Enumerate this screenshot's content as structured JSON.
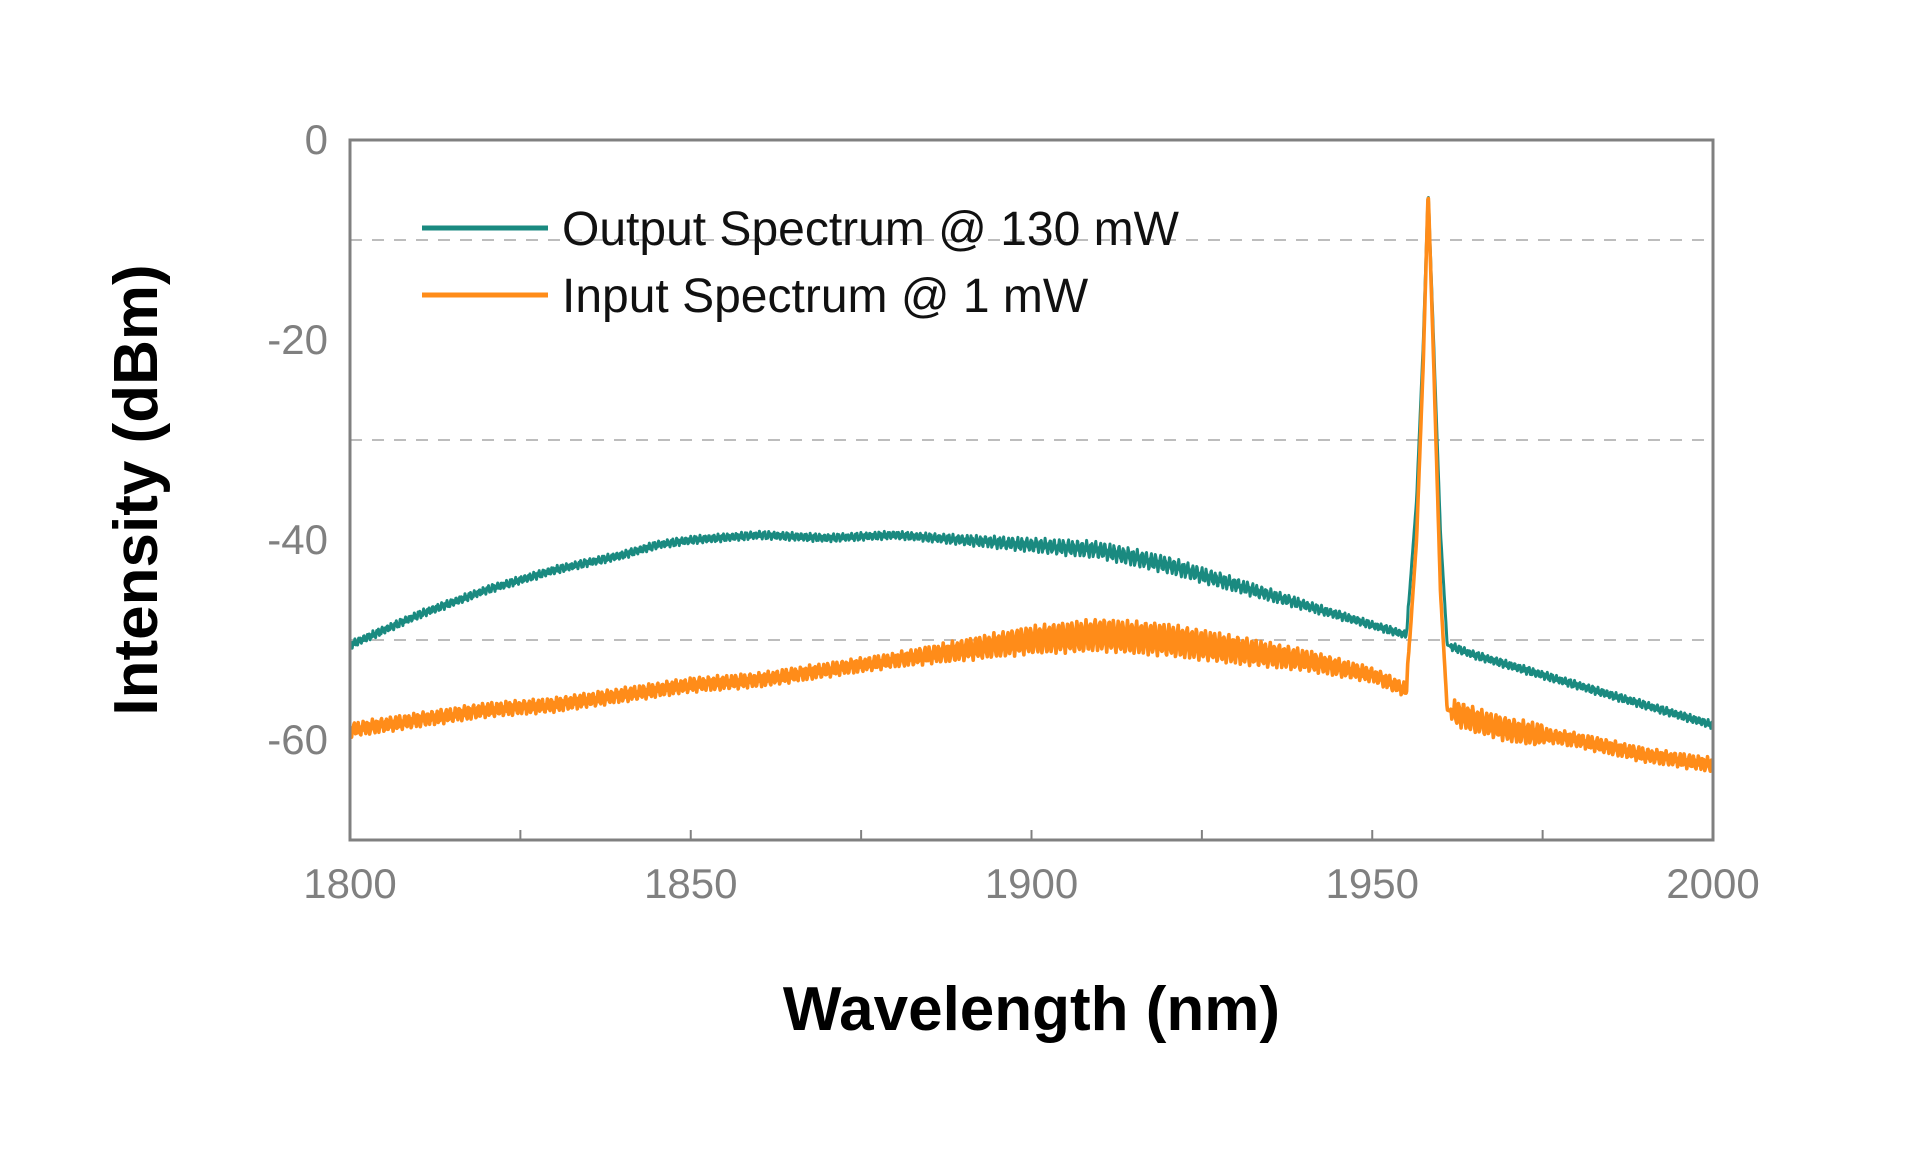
{
  "chart_data": {
    "type": "line",
    "title": "",
    "xlabel": "Wavelength (nm)",
    "ylabel": "Intensity (dBm)",
    "xlim": [
      1800,
      2000
    ],
    "ylim": [
      -70,
      0
    ],
    "xticks": [
      1800,
      1850,
      1900,
      1950,
      2000
    ],
    "xtick_labels": [
      "1800",
      "1850",
      "1900",
      "1950",
      "2000"
    ],
    "yticks": [
      0,
      -20,
      -40,
      -60
    ],
    "ytick_labels": [
      "0",
      "-20",
      "-40",
      "-60"
    ],
    "grid": "horizontal dashed at -10, -30, -50",
    "legend_position": "top-left",
    "series": [
      {
        "name": "Output Spectrum @ 130 mW",
        "color": "#1a8a80",
        "x": [
          1800,
          1810,
          1820,
          1830,
          1840,
          1845,
          1850,
          1860,
          1870,
          1880,
          1890,
          1900,
          1910,
          1920,
          1930,
          1940,
          1950,
          1955,
          1956.5,
          1957.5,
          1958.2,
          1959,
          1960,
          1961,
          1965,
          1970,
          1980,
          1990,
          2000
        ],
        "y": [
          -50.5,
          -47.5,
          -45,
          -43,
          -41.5,
          -40.5,
          -40,
          -39.5,
          -39.8,
          -39.5,
          -40,
          -40.5,
          -41,
          -42.5,
          -44.5,
          -46.5,
          -48.5,
          -49.5,
          -36,
          -20,
          -5,
          -20,
          -39,
          -50.5,
          -51.5,
          -52.5,
          -54.5,
          -56.5,
          -58.5
        ]
      },
      {
        "name": "Input Spectrum @ 1 mW",
        "color": "#ff8c19",
        "x": [
          1800,
          1810,
          1820,
          1830,
          1840,
          1845,
          1850,
          1860,
          1870,
          1880,
          1890,
          1900,
          1910,
          1920,
          1930,
          1940,
          1950,
          1955,
          1956.5,
          1957.5,
          1958.2,
          1959,
          1960,
          1961,
          1965,
          1970,
          1980,
          1990,
          2000
        ],
        "y": [
          -59,
          -58,
          -57,
          -56.5,
          -55.5,
          -55,
          -54.5,
          -54,
          -53,
          -52,
          -51,
          -50,
          -49.5,
          -50,
          -51,
          -52,
          -53.5,
          -55,
          -40,
          -22,
          -5,
          -22,
          -45,
          -57,
          -58,
          -59,
          -60,
          -61.5,
          -62.5
        ]
      }
    ]
  }
}
